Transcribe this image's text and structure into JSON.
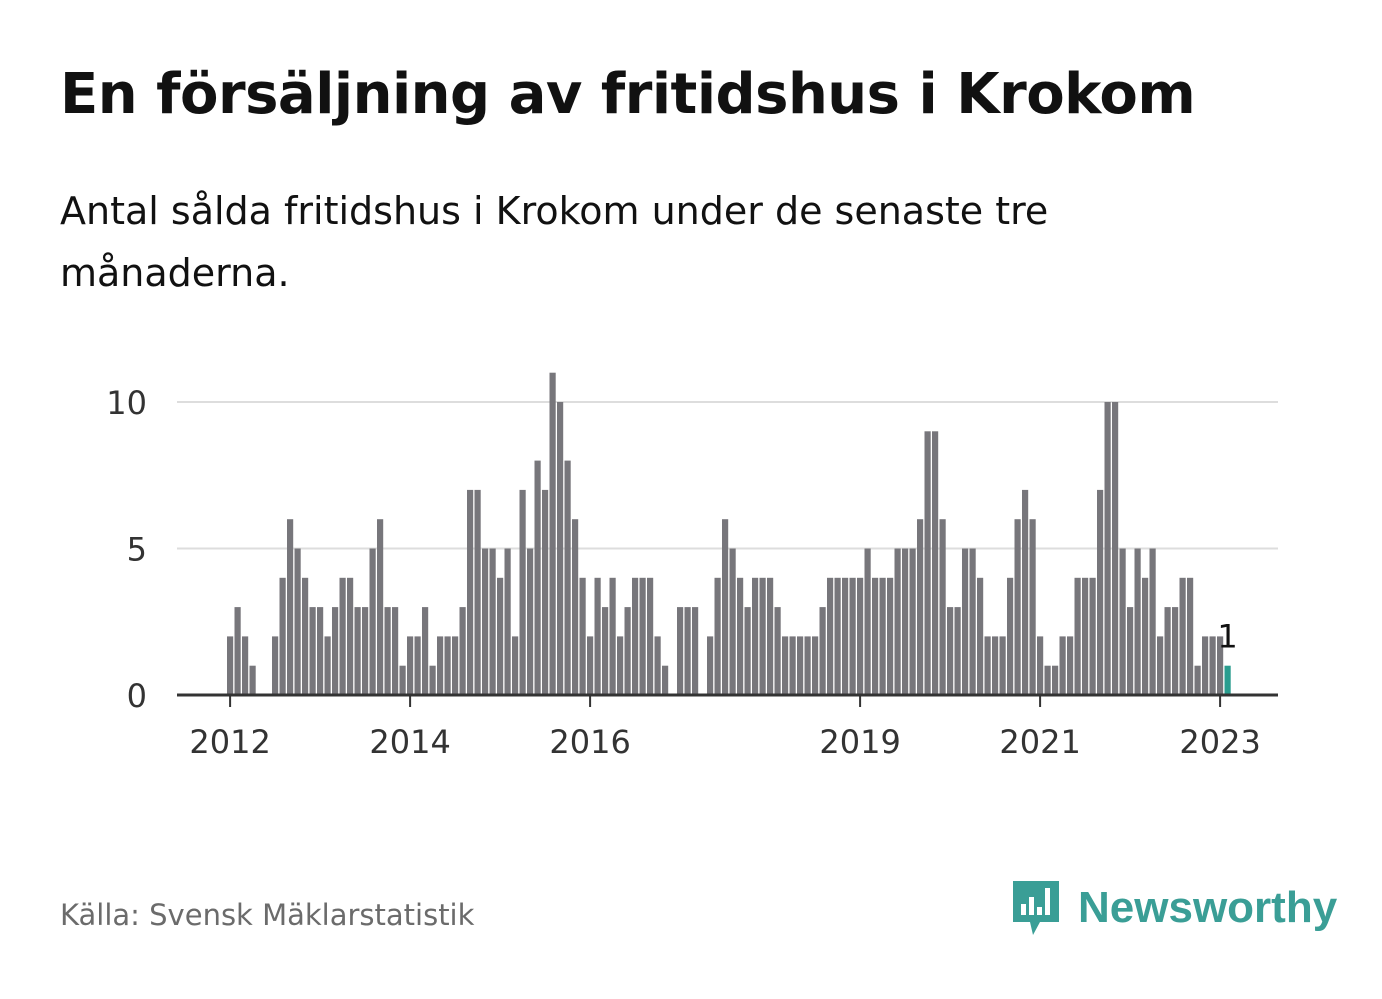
{
  "title": "En försäljning av fritidshus i Krokom",
  "subtitle": "Antal sålda fritidshus i Krokom under de senaste tre månaderna.",
  "source": "Källa: Svensk Mäklarstatistik",
  "brand": {
    "name": "Newsworthy",
    "logo_icon": "bar-chart-speech-bubble-icon",
    "color": "#3a9e96"
  },
  "colors": {
    "bar": "#77767b",
    "highlight": "#2a9d8f",
    "grid": "#dddddd",
    "axis": "#333333"
  },
  "chart_data": {
    "type": "bar",
    "x_start": "2012-01",
    "x_frequency": "monthly",
    "values": [
      2,
      3,
      2,
      1,
      0,
      0,
      2,
      4,
      6,
      5,
      4,
      3,
      3,
      2,
      3,
      4,
      4,
      3,
      3,
      5,
      6,
      3,
      3,
      1,
      2,
      2,
      3,
      1,
      2,
      2,
      2,
      3,
      7,
      7,
      5,
      5,
      4,
      5,
      2,
      7,
      5,
      8,
      7,
      11,
      10,
      8,
      6,
      4,
      2,
      4,
      3,
      4,
      2,
      3,
      4,
      4,
      4,
      2,
      1,
      0,
      3,
      3,
      3,
      0,
      2,
      4,
      6,
      5,
      4,
      3,
      4,
      4,
      4,
      3,
      2,
      2,
      2,
      2,
      2,
      3,
      4,
      4,
      4,
      4,
      4,
      5,
      4,
      4,
      4,
      5,
      5,
      5,
      6,
      9,
      9,
      6,
      3,
      3,
      5,
      5,
      4,
      2,
      2,
      2,
      4,
      6,
      7,
      6,
      2,
      1,
      1,
      2,
      2,
      4,
      4,
      4,
      7,
      10,
      10,
      5,
      3,
      5,
      4,
      5,
      2,
      3,
      3,
      4,
      4,
      1,
      2,
      2,
      2,
      1
    ],
    "highlight_last": true,
    "last_value_label": "1",
    "x_tick_labels": [
      "2012",
      "2014",
      "2016",
      "2019",
      "2021",
      "2023"
    ],
    "y_ticks": [
      "0",
      "5",
      "10"
    ],
    "ylim": [
      0,
      11
    ],
    "grid": true,
    "legend": "none"
  }
}
